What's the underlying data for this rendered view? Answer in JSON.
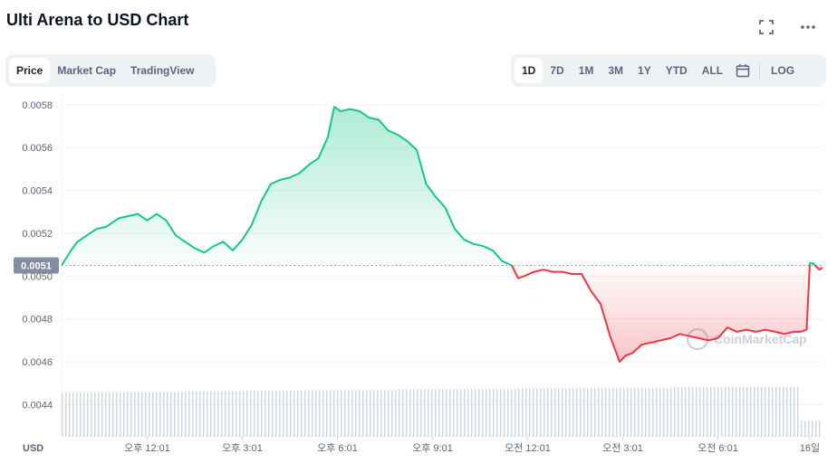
{
  "header": {
    "title": "Ulti Arena to USD Chart"
  },
  "icons": {
    "fullscreen": "fullscreen-icon",
    "more": "more-icon",
    "calendar": "calendar-icon"
  },
  "tabs_left": [
    {
      "label": "Price",
      "active": true
    },
    {
      "label": "Market Cap",
      "active": false
    },
    {
      "label": "TradingView",
      "active": false
    }
  ],
  "tabs_right": [
    {
      "label": "1D",
      "active": true
    },
    {
      "label": "7D",
      "active": false
    },
    {
      "label": "1M",
      "active": false
    },
    {
      "label": "3M",
      "active": false
    },
    {
      "label": "1Y",
      "active": false
    },
    {
      "label": "YTD",
      "active": false
    },
    {
      "label": "ALL",
      "active": false
    }
  ],
  "log_label": "LOG",
  "colors": {
    "up": "#16c784",
    "down": "#ea3943",
    "grid": "#eff2f5",
    "text": "#58667e",
    "price_tag": "#858ca2",
    "volume": "#cfd6e4"
  },
  "watermark": "CoinMarketCap",
  "chart_data": {
    "type": "line",
    "currency_label": "USD",
    "current_price_label": "0.0051",
    "baseline": 0.00505,
    "ylim": [
      0.00425,
      0.00585
    ],
    "y_ticks": [
      "0.0058",
      "0.0056",
      "0.0054",
      "0.0052",
      "0.0050",
      "0.0048",
      "0.0046",
      "0.0044"
    ],
    "x_ticks": [
      "오후 12:01",
      "오후 3:01",
      "오후 6:01",
      "오후 9:01",
      "오전 12:01",
      "오전 3:01",
      "오전 6:01",
      "16일"
    ],
    "xlim": [
      0,
      24
    ],
    "x_tick_positions": [
      2.7,
      5.7,
      8.7,
      11.7,
      14.7,
      17.7,
      20.7,
      23.6
    ],
    "series": [
      {
        "x": [
          0,
          0.3,
          0.5,
          0.8,
          1.1,
          1.4,
          1.8,
          2.1,
          2.4,
          2.7,
          3.0,
          3.3,
          3.6,
          3.9,
          4.2,
          4.5,
          4.8,
          5.1,
          5.4,
          5.7,
          6.0,
          6.3,
          6.6,
          6.9,
          7.2,
          7.5,
          7.8,
          8.1,
          8.4,
          8.6,
          8.8,
          9.1,
          9.4,
          9.7,
          10.0,
          10.3,
          10.6,
          10.9,
          11.2,
          11.5,
          11.8,
          12.1,
          12.4,
          12.7,
          13.0,
          13.3,
          13.6,
          13.9,
          14.2,
          14.4,
          14.6,
          14.9,
          15.2,
          15.5,
          15.8,
          16.1,
          16.4,
          16.7,
          17.0,
          17.3,
          17.6,
          17.8,
          18.0,
          18.3,
          18.6,
          18.9,
          19.2,
          19.5,
          19.8,
          20.1,
          20.4,
          20.7,
          21.0,
          21.3,
          21.6,
          21.9,
          22.2,
          22.5,
          22.8,
          23.1,
          23.3,
          23.5,
          23.6,
          23.7,
          23.9,
          24.0
        ],
        "y": [
          0.00505,
          0.00512,
          0.00516,
          0.00519,
          0.00522,
          0.00523,
          0.00527,
          0.00528,
          0.00529,
          0.00526,
          0.00529,
          0.00526,
          0.00519,
          0.00516,
          0.00513,
          0.00511,
          0.00514,
          0.00516,
          0.00512,
          0.00517,
          0.00524,
          0.00535,
          0.00543,
          0.00545,
          0.00546,
          0.00548,
          0.00552,
          0.00555,
          0.00565,
          0.00579,
          0.00577,
          0.00578,
          0.00577,
          0.00574,
          0.00573,
          0.00568,
          0.00566,
          0.00563,
          0.00559,
          0.00543,
          0.00537,
          0.00532,
          0.00522,
          0.00517,
          0.00515,
          0.00514,
          0.00512,
          0.00507,
          0.00505,
          0.00499,
          0.005,
          0.00502,
          0.00503,
          0.00502,
          0.00502,
          0.00501,
          0.00501,
          0.00493,
          0.00487,
          0.00472,
          0.0046,
          0.00463,
          0.00464,
          0.00468,
          0.00469,
          0.0047,
          0.00471,
          0.00473,
          0.00472,
          0.00471,
          0.0047,
          0.00471,
          0.00476,
          0.00474,
          0.00475,
          0.00474,
          0.00475,
          0.00474,
          0.00473,
          0.00474,
          0.00474,
          0.00475,
          0.00506,
          0.00506,
          0.00503,
          0.00504
        ]
      }
    ],
    "volume": {
      "ylim": [
        0,
        1
      ],
      "values": [
        0.78,
        0.78,
        0.79,
        0.79,
        0.8,
        0.8,
        0.81,
        0.81,
        0.82,
        0.82,
        0.82,
        0.83,
        0.83,
        0.84,
        0.84,
        0.85,
        0.85,
        0.86,
        0.86,
        0.86,
        0.87,
        0.87,
        0.88,
        0.88,
        0.88,
        0.28
      ]
    }
  }
}
